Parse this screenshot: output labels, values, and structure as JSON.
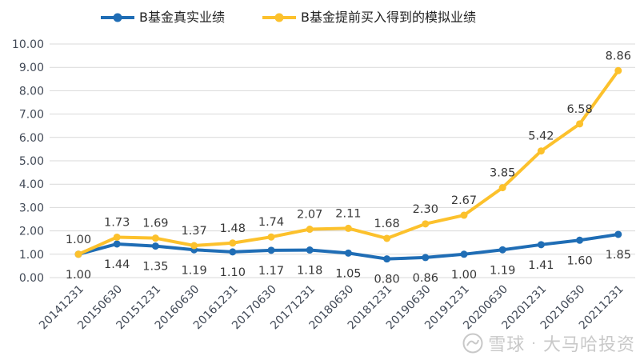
{
  "legend": {
    "series1_label": "B基金真实业绩",
    "series2_label": "B基金提前买入得到的模拟业绩"
  },
  "watermark": {
    "site": "雪球",
    "separator": "·",
    "user": "大马哈投资"
  },
  "colors": {
    "actual": "#1F6DB5",
    "simulated": "#FCC12C",
    "gridline": "#D9D9D9",
    "axis_text": "#424A57",
    "data_label": "#383838",
    "watermark": "#9C9C9C",
    "background": "#FFFFFF"
  },
  "chart_data": {
    "type": "line",
    "title": "",
    "xlabel": "",
    "ylabel": "",
    "categories": [
      "20141231",
      "20150630",
      "20151231",
      "20160630",
      "20161231",
      "20170630",
      "20171231",
      "20180630",
      "20181231",
      "20190630",
      "20191231",
      "20200630",
      "20201231",
      "20210630",
      "20211231"
    ],
    "series": [
      {
        "name": "B基金真实业绩",
        "color_key": "actual",
        "label_position": "below",
        "values": [
          1.0,
          1.44,
          1.35,
          1.19,
          1.1,
          1.17,
          1.18,
          1.05,
          0.8,
          0.86,
          1.0,
          1.19,
          1.41,
          1.6,
          1.85
        ]
      },
      {
        "name": "B基金提前买入得到的模拟业绩",
        "color_key": "simulated",
        "label_position": "above",
        "values": [
          1.0,
          1.73,
          1.69,
          1.37,
          1.48,
          1.74,
          2.07,
          2.11,
          1.68,
          2.3,
          2.67,
          3.85,
          5.42,
          6.58,
          8.86
        ]
      }
    ],
    "ylim": [
      0,
      10
    ],
    "y_tick_step": 1,
    "y_tick_decimals": 2,
    "grid": true,
    "legend_position": "top",
    "x_label_rotation": -45
  }
}
